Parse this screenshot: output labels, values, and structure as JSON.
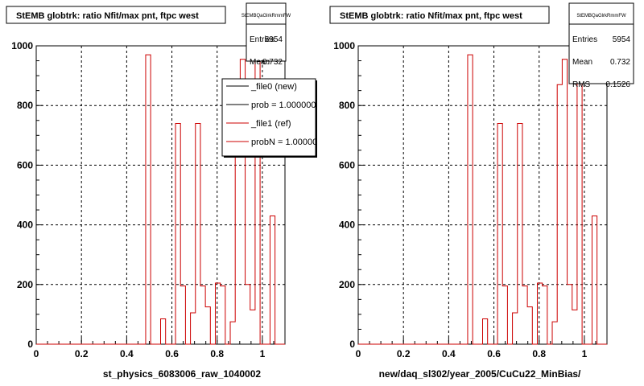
{
  "colors": {
    "series_new": "#000000",
    "series_ref": "#cc0000",
    "grid": "#000000",
    "frame": "#000000"
  },
  "panels": [
    {
      "title": "StEMB globtrk: ratio Nfit/max pnt, ftpc west",
      "stats_header": "StEMBQaGlrkRmmFW",
      "stats": [
        {
          "label": "Entries",
          "value": "5954"
        },
        {
          "label": "Mean",
          "value": "0.732"
        }
      ],
      "legend": [
        {
          "text": "_file0 (new)",
          "color": "#000000"
        },
        {
          "text": "prob = 1.000000",
          "color": "#000000"
        },
        {
          "text": "_file1 (ref)",
          "color": "#cc0000"
        },
        {
          "text": "probN = 1.000000",
          "color": "#cc0000"
        }
      ],
      "xlabel": "st_physics_6083006_raw_1040002"
    },
    {
      "title": "StEMB globtrk: ratio Nfit/max pnt, ftpc west",
      "stats_header": "StEMBQaGlrkRmmFW",
      "stats": [
        {
          "label": "Entries",
          "value": "5954"
        },
        {
          "label": "Mean",
          "value": "0.732"
        },
        {
          "label": "RMS",
          "value": "0.1526"
        }
      ],
      "legend": [],
      "xlabel": "new/daq_sl302/year_2005/CuCu22_MinBias/"
    }
  ],
  "chart_data": {
    "type": "bar",
    "xlim": [
      0,
      1.1
    ],
    "ylim": [
      0,
      1000
    ],
    "x_ticks": [
      "0",
      "0.2",
      "0.4",
      "0.6",
      "0.8",
      "1"
    ],
    "y_ticks": [
      "0",
      "200",
      "400",
      "600",
      "800",
      "1000"
    ],
    "grid": true,
    "bin_edges": [
      0.0,
      0.022,
      0.044,
      0.066,
      0.088,
      0.11,
      0.132,
      0.154,
      0.176,
      0.198,
      0.22,
      0.242,
      0.264,
      0.286,
      0.308,
      0.33,
      0.352,
      0.374,
      0.396,
      0.418,
      0.44,
      0.462,
      0.484,
      0.506,
      0.528,
      0.55,
      0.572,
      0.594,
      0.616,
      0.638,
      0.66,
      0.682,
      0.704,
      0.726,
      0.748,
      0.77,
      0.792,
      0.814,
      0.836,
      0.858,
      0.88,
      0.902,
      0.924,
      0.946,
      0.968,
      0.99,
      1.012,
      1.034,
      1.056,
      1.078,
      1.1
    ],
    "series": [
      {
        "name": "_file1 (ref)",
        "color": "#cc0000",
        "values": [
          0,
          0,
          0,
          0,
          0,
          0,
          0,
          0,
          0,
          0,
          0,
          0,
          0,
          0,
          0,
          0,
          0,
          0,
          0,
          0,
          0,
          0,
          970,
          0,
          0,
          85,
          0,
          0,
          740,
          195,
          0,
          105,
          740,
          195,
          125,
          0,
          205,
          195,
          0,
          75,
          870,
          955,
          200,
          115,
          955,
          0,
          0,
          430,
          0,
          0
        ]
      }
    ]
  }
}
